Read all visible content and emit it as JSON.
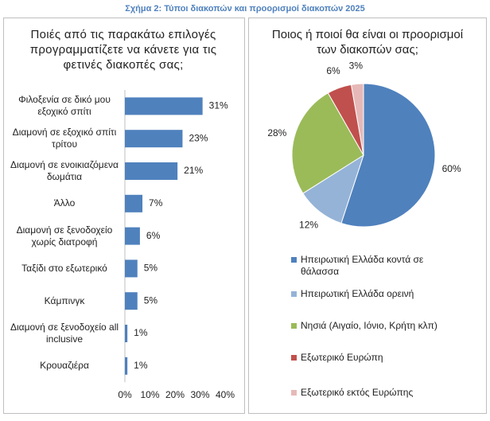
{
  "header": {
    "title": "Σχήμα 2: Τύποι διακοπών και προορισμοί διακοπών 2025"
  },
  "chart_data": [
    {
      "type": "bar",
      "orientation": "horizontal",
      "title": "Ποιές από τις παρακάτω επιλογές προγραμματίζετε να κάνετε για τις φετινές διακοπές σας;",
      "categories": [
        "Φιλοξενία σε δικό μου εξοχικό σπίτι",
        "Διαμονή σε εξοχικό σπίτι τρίτου",
        "Διαμονή σε ενοικιαζόμενα δωμάτια",
        "Άλλο",
        "Διαμονή σε ξενοδοχείο χωρίς διατροφή",
        "Ταξίδι στο εξωτερικό",
        "Κάμπινγκ",
        "Διαμονή σε ξενοδοχείο all inclusive",
        "Κρουαζιέρα"
      ],
      "values": [
        31,
        23,
        21,
        7,
        6,
        5,
        5,
        1,
        1
      ],
      "value_labels": [
        "31%",
        "23%",
        "21%",
        "7%",
        "6%",
        "5%",
        "5%",
        "1%",
        "1%"
      ],
      "color": "#4f81bd",
      "xlim": [
        0,
        40
      ],
      "xticks": [
        {
          "value": 0,
          "label": "0%"
        },
        {
          "value": 10,
          "label": "10%"
        },
        {
          "value": 20,
          "label": "20%"
        },
        {
          "value": 30,
          "label": "30%"
        },
        {
          "value": 40,
          "label": "40%"
        }
      ]
    },
    {
      "type": "pie",
      "title": "Ποιος ή ποιοί θα είναι οι προορισμοί των διακοπών σας;",
      "categories": [
        "Ηπειρωτική Ελλάδα κοντά σε θάλασσα",
        "Ηπειρωτική Ελλάδα ορεινή",
        "Νησιά (Αιγαίο, Ιόνιο, Κρήτη κλπ)",
        "Εξωτερικό Ευρώπη",
        "Εξωτερικό εκτός Ευρώπης"
      ],
      "values": [
        60,
        12,
        28,
        6,
        3
      ],
      "value_labels": [
        "60%",
        "12%",
        "28%",
        "6%",
        "3%"
      ],
      "colors": [
        "#4f81bd",
        "#95b3d7",
        "#9bbb59",
        "#c0504d",
        "#e6b9b8"
      ]
    }
  ]
}
